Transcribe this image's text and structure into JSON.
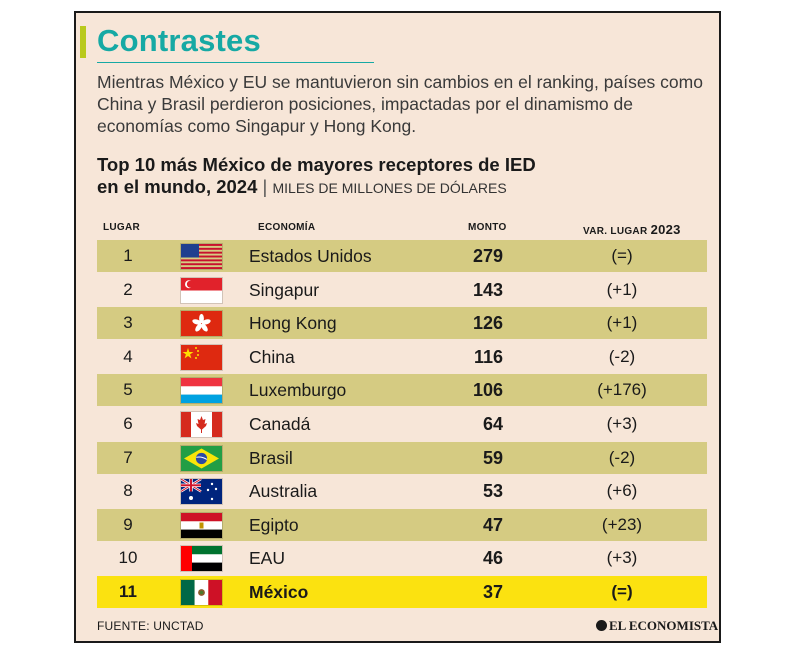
{
  "title": "Contrastes",
  "intro": "Mientras México y EU se mantuvieron sin cambios en el ranking, países como China y Brasil perdieron posiciones, impactadas por el dinamismo de economías como Singapur y Hong Kong.",
  "chart_data": {
    "type": "table",
    "title_line1": "Top 10 más México de mayores receptores de IED",
    "title_line2": "en el mundo, 2024",
    "separator": "|",
    "units": "MILES DE MILLONES DE DÓLARES",
    "columns": {
      "rank": "LUGAR",
      "economy": "ECONOMÍA",
      "amount": "MONTO",
      "change": "VAR. LUGAR",
      "change_year": "2023"
    },
    "rows": [
      {
        "rank": "1",
        "economy": "Estados Unidos",
        "amount": "279",
        "change": "(=)",
        "flag": "usa"
      },
      {
        "rank": "2",
        "economy": "Singapur",
        "amount": "143",
        "change": "(+1)",
        "flag": "singapore"
      },
      {
        "rank": "3",
        "economy": "Hong Kong",
        "amount": "126",
        "change": "(+1)",
        "flag": "hongkong"
      },
      {
        "rank": "4",
        "economy": "China",
        "amount": "116",
        "change": "(-2)",
        "flag": "china"
      },
      {
        "rank": "5",
        "economy": "Luxemburgo",
        "amount": "106",
        "change": "(+176)",
        "flag": "luxembourg"
      },
      {
        "rank": "6",
        "economy": "Canadá",
        "amount": "64",
        "change": "(+3)",
        "flag": "canada"
      },
      {
        "rank": "7",
        "economy": "Brasil",
        "amount": "59",
        "change": "(-2)",
        "flag": "brazil"
      },
      {
        "rank": "8",
        "economy": "Australia",
        "amount": "53",
        "change": "(+6)",
        "flag": "australia"
      },
      {
        "rank": "9",
        "economy": "Egipto",
        "amount": "47",
        "change": "(+23)",
        "flag": "egypt"
      },
      {
        "rank": "10",
        "economy": "EAU",
        "amount": "46",
        "change": "(+3)",
        "flag": "uae"
      },
      {
        "rank": "11",
        "economy": "México",
        "amount": "37",
        "change": "(=)",
        "flag": "mexico",
        "highlight": true
      }
    ]
  },
  "source": "FUENTE: UNCTAD",
  "brand": "EL ECONOMISTA",
  "colors": {
    "accent": "#16a9a4",
    "bar": "#b9c91c",
    "shaded": "#d5cb82",
    "highlight": "#fbe210",
    "background": "#f7e6d8"
  }
}
